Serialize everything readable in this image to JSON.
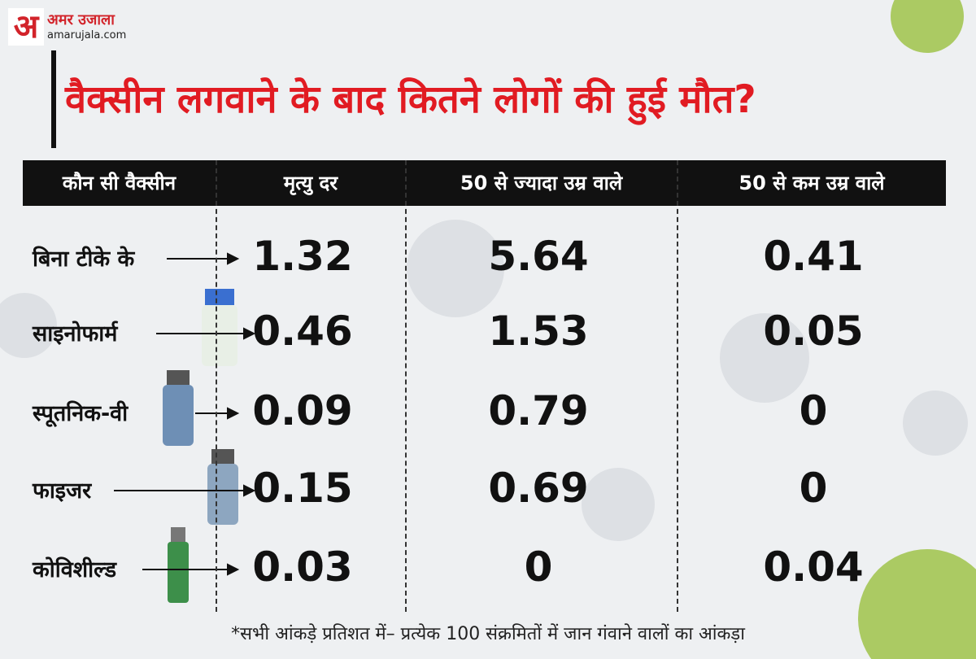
{
  "logo": {
    "mark": "अ",
    "name": "अमर उजाला",
    "site": "amarujala.com"
  },
  "title": "वैक्सीन लगवाने के बाद कितने लोगों की हुई मौत?",
  "table": {
    "header": [
      "कौन सी वैक्सीन",
      "मृत्यु दर",
      "50 से ज्यादा उम्र वाले",
      "50 से कम उम्र वाले"
    ],
    "rows": [
      [
        "बिना टीके के",
        "1.32",
        "5.64",
        "0.41"
      ],
      [
        "साइनोफार्म",
        "0.46",
        "1.53",
        "0.05"
      ],
      [
        "स्पूतनिक-वी",
        "0.09",
        "0.79",
        "0"
      ],
      [
        "फाइजर",
        "0.15",
        "0.69",
        "0"
      ],
      [
        "कोविशील्ड",
        "0.03",
        "0",
        "0.04"
      ]
    ]
  },
  "footnote": "*सभी आंकड़े प्रतिशत में– प्रत्येक 100 संक्रमितों में जान गंवाने वालों का आंकड़ा"
}
